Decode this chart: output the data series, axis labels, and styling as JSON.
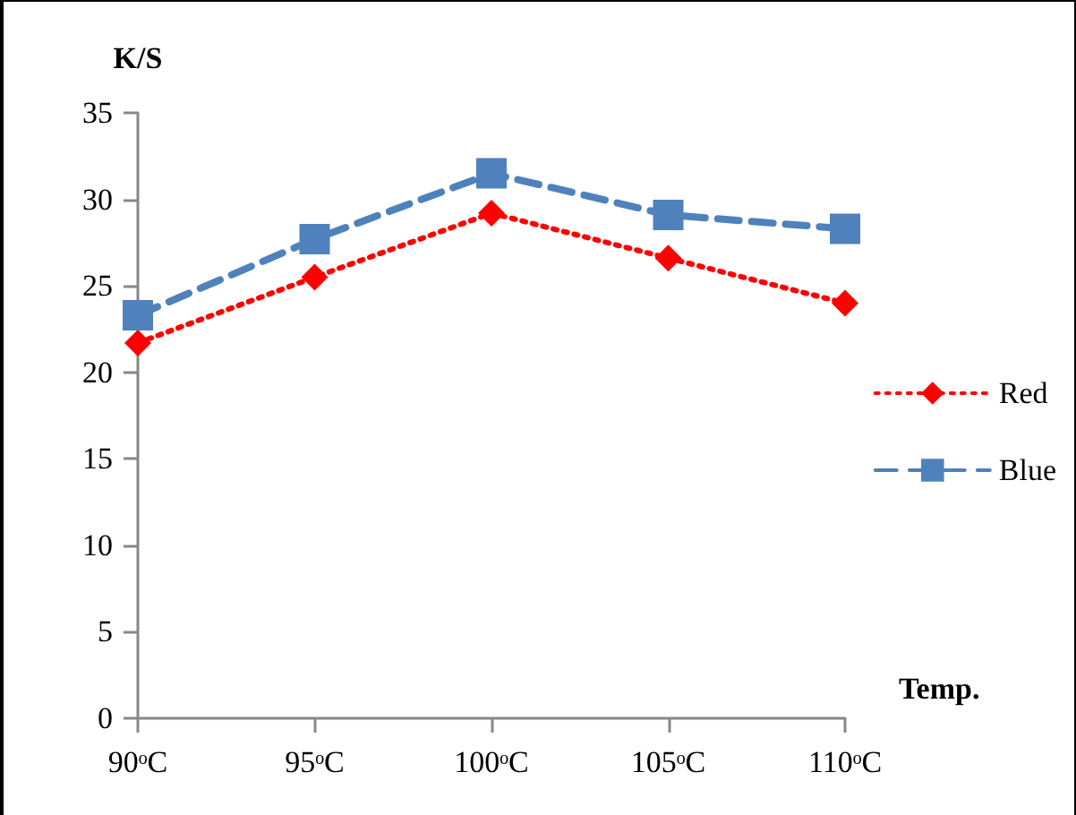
{
  "chart_data": {
    "type": "line",
    "ylabel": "K/S",
    "xlabel": "Temp.",
    "categories": [
      "90ᵒC",
      "95ᵒC",
      "100ᵒC",
      "105ᵒC",
      "110ᵒC"
    ],
    "series": [
      {
        "name": "Red",
        "color": "#ff0000",
        "marker": "diamond",
        "line_style": "dotted",
        "values": [
          21.7,
          25.5,
          29.2,
          26.6,
          24.0
        ]
      },
      {
        "name": "Blue",
        "color": "#4f81bd",
        "marker": "square",
        "line_style": "dashed",
        "values": [
          23.3,
          27.7,
          31.5,
          29.1,
          28.3
        ]
      }
    ],
    "ylim": [
      0,
      35
    ],
    "yticks": [
      0,
      5,
      10,
      15,
      20,
      25,
      30,
      35
    ],
    "grid": false,
    "legend": "right"
  }
}
